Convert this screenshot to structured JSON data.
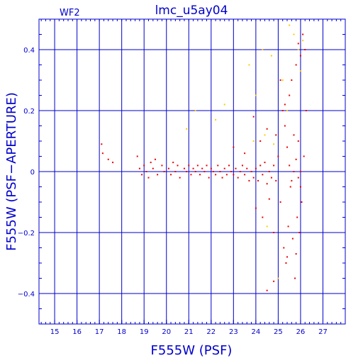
{
  "chart_data": {
    "type": "scatter",
    "title": "lmc_u5ay04",
    "chip_label": "WF2",
    "xlabel": "F555W (PSF)",
    "ylabel": "F555W (PSF−APERTURE)",
    "xlim": [
      14.3,
      28.0
    ],
    "ylim": [
      -0.5,
      0.5
    ],
    "x_ticks": [
      15,
      16,
      17,
      18,
      19,
      20,
      21,
      22,
      23,
      24,
      25,
      26,
      27
    ],
    "y_ticks": [
      -0.4,
      -0.2,
      0,
      0.2,
      0.4
    ],
    "y_tick_labels": [
      "−0.4",
      "−0.2",
      "0",
      "0.2",
      "0.4"
    ],
    "grid": true,
    "colors": {
      "frame": "#0000cc",
      "grid": "#0000cc",
      "text": "#0000cc"
    },
    "series": [
      {
        "color": "#ee0000",
        "points": [
          [
            17.1,
            0.09
          ],
          [
            17.15,
            0.06
          ],
          [
            17.4,
            0.04
          ],
          [
            17.6,
            0.03
          ],
          [
            18.7,
            0.05
          ],
          [
            18.8,
            0.01
          ],
          [
            18.9,
            -0.01
          ],
          [
            19.0,
            0.02
          ],
          [
            19.1,
            0.0
          ],
          [
            19.2,
            -0.02
          ],
          [
            19.3,
            0.03
          ],
          [
            19.4,
            0.01
          ],
          [
            19.5,
            0.04
          ],
          [
            19.6,
            -0.01
          ],
          [
            19.8,
            0.02
          ],
          [
            19.9,
            0.0
          ],
          [
            20.1,
            0.01
          ],
          [
            20.2,
            -0.01
          ],
          [
            20.3,
            0.03
          ],
          [
            20.4,
            0.0
          ],
          [
            20.5,
            0.02
          ],
          [
            20.6,
            -0.02
          ],
          [
            20.8,
            0.01
          ],
          [
            20.9,
            0.0
          ],
          [
            21.0,
            0.02
          ],
          [
            21.1,
            -0.01
          ],
          [
            21.2,
            0.01
          ],
          [
            21.3,
            0.0
          ],
          [
            21.4,
            0.02
          ],
          [
            21.5,
            -0.01
          ],
          [
            21.6,
            0.01
          ],
          [
            21.7,
            0.0
          ],
          [
            21.8,
            0.02
          ],
          [
            21.9,
            -0.02
          ],
          [
            22.0,
            0.01
          ],
          [
            22.1,
            0.0
          ],
          [
            22.2,
            -0.01
          ],
          [
            22.3,
            0.02
          ],
          [
            22.4,
            0.0
          ],
          [
            22.5,
            -0.02
          ],
          [
            22.6,
            0.01
          ],
          [
            22.7,
            -0.01
          ],
          [
            22.8,
            0.02
          ],
          [
            22.9,
            0.0
          ],
          [
            23.0,
            -0.01
          ],
          [
            23.1,
            0.01
          ],
          [
            23.2,
            -0.02
          ],
          [
            23.3,
            0.0
          ],
          [
            23.4,
            0.02
          ],
          [
            23.5,
            -0.01
          ],
          [
            23.6,
            0.01
          ],
          [
            23.7,
            -0.03
          ],
          [
            23.8,
            0.0
          ],
          [
            23.9,
            -0.02
          ],
          [
            24.0,
            0.01
          ],
          [
            24.1,
            -0.03
          ],
          [
            24.2,
            0.02
          ],
          [
            24.3,
            -0.01
          ],
          [
            24.4,
            0.03
          ],
          [
            24.5,
            -0.04
          ],
          [
            24.6,
            0.0
          ],
          [
            24.7,
            -0.02
          ],
          [
            24.8,
            0.02
          ],
          [
            24.9,
            -0.03
          ],
          [
            23.0,
            0.08
          ],
          [
            23.5,
            0.06
          ],
          [
            23.9,
            0.18
          ],
          [
            24.0,
            -0.12
          ],
          [
            24.2,
            0.1
          ],
          [
            24.3,
            -0.15
          ],
          [
            24.5,
            0.14
          ],
          [
            24.6,
            -0.09
          ],
          [
            24.8,
            -0.2
          ],
          [
            24.9,
            0.12
          ],
          [
            25.0,
            0.05
          ],
          [
            25.1,
            -0.1
          ],
          [
            25.2,
            0.2
          ],
          [
            25.25,
            -0.25
          ],
          [
            25.3,
            0.15
          ],
          [
            25.35,
            -0.3
          ],
          [
            25.4,
            0.08
          ],
          [
            25.45,
            -0.18
          ],
          [
            25.5,
            0.25
          ],
          [
            25.55,
            -0.05
          ],
          [
            25.6,
            0.3
          ],
          [
            25.65,
            -0.22
          ],
          [
            25.7,
            0.12
          ],
          [
            25.75,
            -0.35
          ],
          [
            25.8,
            0.35
          ],
          [
            25.85,
            -0.15
          ],
          [
            25.9,
            0.42
          ],
          [
            25.95,
            -0.2
          ],
          [
            26.0,
            0.38
          ],
          [
            26.05,
            -0.1
          ],
          [
            26.1,
            0.45
          ],
          [
            26.15,
            0.05
          ],
          [
            26.2,
            0.4
          ],
          [
            26.25,
            0.2
          ],
          [
            25.5,
            0.02
          ],
          [
            25.6,
            -0.03
          ],
          [
            25.7,
            0.0
          ],
          [
            25.8,
            0.04
          ],
          [
            25.9,
            -0.02
          ],
          [
            26.0,
            0.0
          ],
          [
            24.8,
            -0.36
          ],
          [
            24.5,
            -0.39
          ],
          [
            25.1,
            0.3
          ],
          [
            25.3,
            0.22
          ],
          [
            25.9,
            0.1
          ],
          [
            26.0,
            -0.05
          ],
          [
            25.4,
            -0.28
          ],
          [
            25.8,
            -0.27
          ]
        ]
      },
      {
        "color": "#ffcc00",
        "points": [
          [
            20.9,
            0.14
          ],
          [
            21.3,
            0.2
          ],
          [
            22.2,
            0.17
          ],
          [
            22.6,
            0.22
          ],
          [
            23.7,
            0.35
          ],
          [
            24.0,
            0.25
          ],
          [
            24.3,
            0.4
          ],
          [
            24.7,
            0.38
          ],
          [
            25.0,
            -0.35
          ],
          [
            25.5,
            0.48
          ],
          [
            25.7,
            0.45
          ],
          [
            25.9,
            0.4
          ],
          [
            26.0,
            0.33
          ],
          [
            26.1,
            0.43
          ],
          [
            24.4,
            0.12
          ],
          [
            24.8,
            0.09
          ],
          [
            24.5,
            -0.18
          ],
          [
            25.2,
            0.3
          ],
          [
            25.4,
            0.2
          ],
          [
            23.9,
            0.1
          ]
        ]
      }
    ]
  }
}
